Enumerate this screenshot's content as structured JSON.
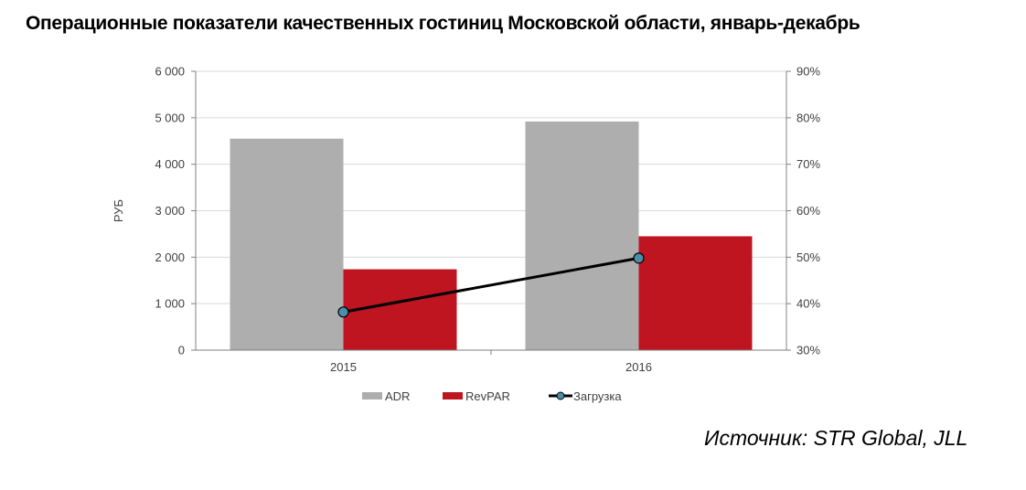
{
  "title": "Операционные показатели качественных гостиниц Московской области, январь-декабрь",
  "source": "Источник: STR Global, JLL",
  "colors": {
    "adr": "#aeaeae",
    "revpar": "#be1520",
    "load": "#000000",
    "marker": "#4a8ea8"
  },
  "chart_data": {
    "type": "bar",
    "categories": [
      "2015",
      "2016"
    ],
    "series": [
      {
        "name": "ADR",
        "type": "bar",
        "axis": "left",
        "values": [
          4550,
          4920
        ]
      },
      {
        "name": "RevPAR",
        "type": "bar",
        "axis": "left",
        "values": [
          1740,
          2450
        ]
      },
      {
        "name": "Загрузка",
        "type": "line",
        "axis": "right",
        "values": [
          38.2,
          49.8
        ]
      }
    ],
    "ylabel": "РУБ",
    "ylim": [
      0,
      6000
    ],
    "y2lim": [
      30,
      90
    ],
    "yticks": [
      "0",
      "1 000",
      "2 000",
      "3 000",
      "4 000",
      "5 000",
      "6 000"
    ],
    "y2ticks": [
      "30%",
      "40%",
      "50%",
      "60%",
      "70%",
      "80%",
      "90%"
    ],
    "grid": true,
    "legend": "bottom"
  }
}
